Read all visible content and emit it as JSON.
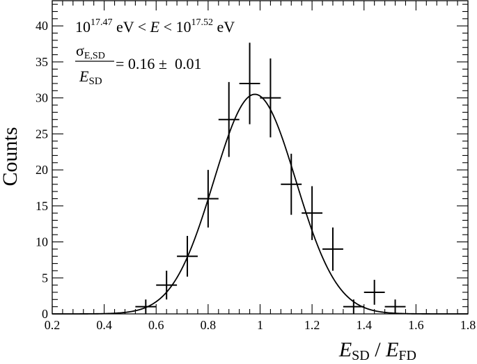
{
  "chart_data": {
    "type": "scatter",
    "title": "",
    "xlabel": {
      "main": "E",
      "sub": "SD",
      "sep": " / ",
      "main2": "E",
      "sub2": "FD"
    },
    "ylabel": "Counts",
    "xlim": [
      0.2,
      1.8
    ],
    "ylim": [
      0,
      43.5
    ],
    "xticks": [
      0.2,
      0.4,
      0.6,
      0.8,
      1.0,
      1.2,
      1.4,
      1.6,
      1.8
    ],
    "xticklabels": [
      "0.2",
      "0.4",
      "0.6",
      "0.8",
      "1",
      "1.2",
      "1.4",
      "1.6",
      "1.8"
    ],
    "yticks": [
      0,
      5,
      10,
      15,
      20,
      25,
      30,
      35,
      40
    ],
    "yticklabels": [
      "0",
      "5",
      "10",
      "15",
      "20",
      "25",
      "30",
      "35",
      "40"
    ],
    "grid": false,
    "annotation": {
      "line1": {
        "base1": "10",
        "exp1": "17.47",
        "mid": " eV < ",
        "var": "E",
        "lt": " < ",
        "base2": "10",
        "exp2": "17.52",
        "unit": " eV"
      },
      "line2": {
        "num_sym": "σ",
        "num_sub": "E,SD",
        "den_sym": "E",
        "den_sub": "SD",
        "value": "= 0.16 ±  0.01"
      }
    },
    "bin_half_width": 0.04,
    "series": [
      {
        "type": "errorbar",
        "x": [
          0.56,
          0.64,
          0.72,
          0.8,
          0.88,
          0.96,
          1.04,
          1.12,
          1.2,
          1.28,
          1.36,
          1.44,
          1.52
        ],
        "y": [
          1,
          4,
          8,
          16,
          27,
          32,
          30,
          18,
          14,
          9,
          1,
          3,
          1
        ],
        "yerr": [
          1.0,
          2.0,
          2.83,
          4.0,
          5.2,
          5.66,
          5.48,
          4.24,
          3.74,
          3.0,
          1.0,
          1.73,
          1.0
        ]
      },
      {
        "type": "gaussian_fit",
        "amplitude": 30.5,
        "mean": 0.98,
        "sigma": 0.158
      }
    ]
  }
}
